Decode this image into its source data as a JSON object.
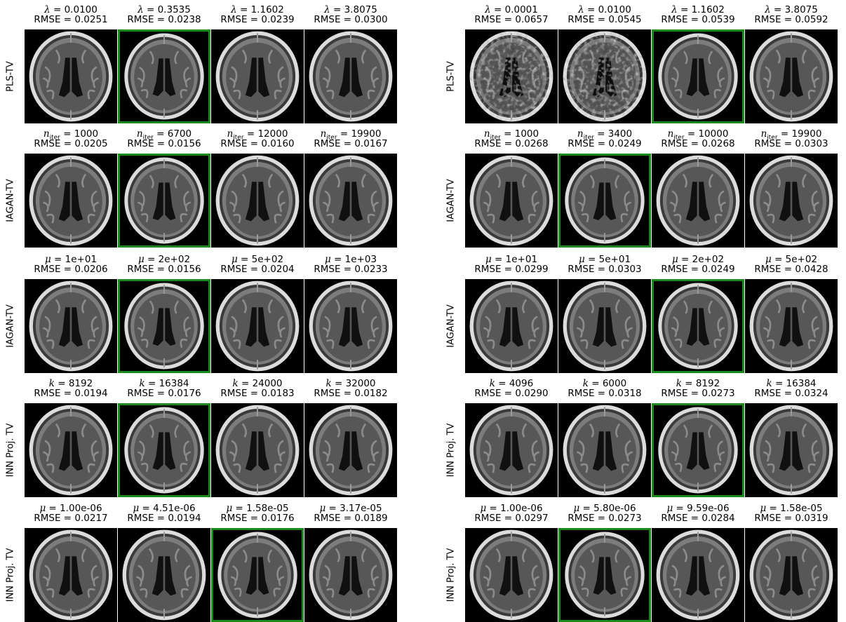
{
  "colors": {
    "best_border": "#1a8a1a",
    "background": "#000000"
  },
  "panels": [
    {
      "rows": [
        {
          "label": "PLS-TV",
          "param": "λ",
          "sub": "",
          "best": 1,
          "noise": 0,
          "values": [
            "0.0100",
            "0.3535",
            "1.1602",
            "3.8075"
          ],
          "rmse": [
            "RMSE = 0.0251",
            "RMSE = 0.0238",
            "RMSE = 0.0239",
            "RMSE = 0.0300"
          ]
        },
        {
          "label": "IAGAN-TV",
          "param": "n",
          "sub": "iter",
          "best": 1,
          "noise": 0,
          "values": [
            "1000",
            "6700",
            "12000",
            "19900"
          ],
          "rmse": [
            "RMSE = 0.0205",
            "RMSE = 0.0156",
            "RMSE = 0.0160",
            "RMSE = 0.0167"
          ]
        },
        {
          "label": "IAGAN-TV",
          "param": "μ",
          "sub": "",
          "best": 1,
          "noise": 0,
          "values": [
            "1e+01",
            "2e+02",
            "5e+02",
            "1e+03"
          ],
          "rmse": [
            "RMSE = 0.0206",
            "RMSE = 0.0156",
            "RMSE = 0.0204",
            "RMSE = 0.0233"
          ]
        },
        {
          "label": "INN Proj. TV",
          "param": "k",
          "sub": "",
          "best": 1,
          "noise": 0,
          "values": [
            "8192",
            "16384",
            "24000",
            "32000"
          ],
          "rmse": [
            "RMSE = 0.0194",
            "RMSE = 0.0176",
            "RMSE = 0.0183",
            "RMSE = 0.0182"
          ]
        },
        {
          "label": "INN Proj. TV",
          "param": "μ",
          "sub": "",
          "best": 2,
          "noise": 0,
          "values": [
            "1.00e-06",
            "4.51e-06",
            "1.58e-05",
            "3.17e-05"
          ],
          "rmse": [
            "RMSE = 0.0217",
            "RMSE = 0.0194",
            "RMSE = 0.0176",
            "RMSE = 0.0189"
          ]
        }
      ]
    },
    {
      "rows": [
        {
          "label": "PLS-TV",
          "param": "λ",
          "sub": "",
          "best": 2,
          "noise": 1,
          "values": [
            "0.0001",
            "0.0100",
            "1.1602",
            "3.8075"
          ],
          "rmse": [
            "RMSE = 0.0657",
            "RMSE = 0.0545",
            "RMSE = 0.0539",
            "RMSE = 0.0592"
          ]
        },
        {
          "label": "IAGAN-TV",
          "param": "n",
          "sub": "iter",
          "best": 1,
          "noise": 0,
          "values": [
            "1000",
            "3400",
            "10000",
            "19900"
          ],
          "rmse": [
            "RMSE = 0.0268",
            "RMSE = 0.0249",
            "RMSE = 0.0268",
            "RMSE = 0.0303"
          ]
        },
        {
          "label": "IAGAN-TV",
          "param": "μ",
          "sub": "",
          "best": 2,
          "noise": 0,
          "values": [
            "1e+01",
            "5e+01",
            "2e+02",
            "5e+02"
          ],
          "rmse": [
            "RMSE = 0.0299",
            "RMSE = 0.0303",
            "RMSE = 0.0249",
            "RMSE = 0.0428"
          ]
        },
        {
          "label": "INN Proj. TV",
          "param": "k",
          "sub": "",
          "best": 2,
          "noise": 0,
          "values": [
            "4096",
            "6000",
            "8192",
            "16384"
          ],
          "rmse": [
            "RMSE = 0.0290",
            "RMSE = 0.0318",
            "RMSE = 0.0273",
            "RMSE = 0.0324"
          ]
        },
        {
          "label": "INN Proj. TV",
          "param": "μ",
          "sub": "",
          "best": 1,
          "noise": 0,
          "values": [
            "1.00e-06",
            "5.80e-06",
            "9.59e-06",
            "1.58e-05"
          ],
          "rmse": [
            "RMSE = 0.0297",
            "RMSE = 0.0273",
            "RMSE = 0.0284",
            "RMSE = 0.0319"
          ]
        }
      ]
    }
  ]
}
